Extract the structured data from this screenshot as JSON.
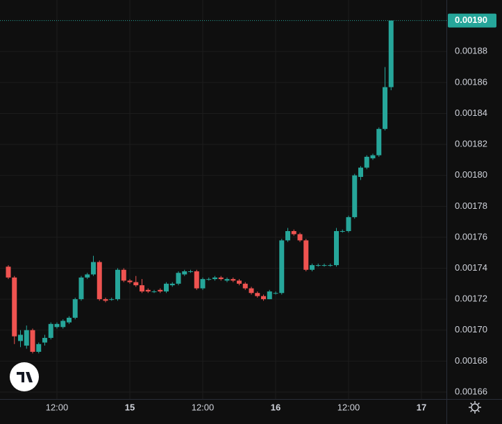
{
  "chart_data": {
    "type": "candlestick",
    "categories": [
      null,
      null,
      null,
      null,
      null,
      null,
      null,
      null,
      "12:00",
      null,
      null,
      null,
      null,
      null,
      null,
      null,
      null,
      null,
      null,
      null,
      "15",
      null,
      null,
      null,
      null,
      null,
      null,
      null,
      null,
      null,
      null,
      null,
      "12:00",
      null,
      null,
      null,
      null,
      null,
      null,
      null,
      null,
      null,
      null,
      null,
      "16",
      null,
      null,
      null,
      null,
      null,
      null,
      null,
      null,
      null,
      null,
      null,
      "12:00",
      null,
      null,
      null,
      null,
      null,
      null,
      null,
      null,
      null,
      null,
      null,
      "17"
    ],
    "open": [
      0.001741,
      0.001734,
      0.001693,
      0.00169,
      0.0017,
      0.001686,
      0.001692,
      0.001695,
      0.001702,
      0.001702,
      0.001705,
      0.001708,
      0.00172,
      0.001734,
      0.001736,
      0.001744,
      0.00172,
      0.00172,
      0.00172,
      0.001739,
      0.001732,
      0.001731,
      0.001729,
      0.001726,
      0.001725,
      0.001726,
      0.001725,
      0.001729,
      0.00173,
      0.001736,
      0.001738,
      0.001738,
      0.001727,
      0.001733,
      0.001733,
      0.001734,
      0.001732,
      0.001733,
      0.001732,
      0.00173,
      0.001727,
      0.001724,
      0.001722,
      0.00172,
      0.001724,
      0.001724,
      0.001758,
      0.001764,
      0.001762,
      0.001758,
      0.001739,
      0.001742,
      0.001742,
      0.001742,
      0.001742,
      0.001764,
      0.001764,
      0.001773,
      0.001799,
      0.001805,
      0.001811,
      0.001813,
      0.00183,
      0.001857,
      null,
      null,
      null,
      null,
      null
    ],
    "high": [
      0.001742,
      0.001735,
      0.0017,
      0.001703,
      0.001701,
      0.001692,
      0.001697,
      0.001705,
      0.001705,
      0.001707,
      0.001709,
      0.001721,
      0.001735,
      0.001737,
      0.001748,
      0.001745,
      0.001721,
      0.001721,
      0.00174,
      0.00174,
      0.001733,
      0.001735,
      0.001733,
      0.001727,
      0.001726,
      0.001727,
      0.001731,
      0.001731,
      0.001738,
      0.001739,
      0.001739,
      0.001739,
      0.001734,
      0.001734,
      0.001735,
      0.001735,
      0.001734,
      0.001734,
      0.001733,
      0.001731,
      0.001728,
      0.001725,
      0.001723,
      0.001726,
      0.001725,
      0.001759,
      0.001766,
      0.001765,
      0.001763,
      0.001759,
      0.001743,
      0.001743,
      0.001743,
      0.001743,
      0.001766,
      0.001765,
      0.001774,
      0.001801,
      0.001806,
      0.001813,
      0.001814,
      0.001831,
      0.00187,
      0.0019,
      null,
      null,
      null,
      null,
      null
    ],
    "low": [
      0.001733,
      0.001691,
      0.001689,
      0.001688,
      0.001685,
      0.001685,
      0.00169,
      0.001694,
      0.001701,
      0.001701,
      0.001704,
      0.001707,
      0.001719,
      0.001733,
      0.001735,
      0.001719,
      0.001718,
      0.001719,
      0.001719,
      0.001731,
      0.00173,
      0.001728,
      0.001724,
      0.001724,
      0.001724,
      0.001724,
      0.001724,
      0.001728,
      0.001729,
      0.001735,
      0.001737,
      0.001726,
      0.001726,
      0.001732,
      0.001732,
      0.001732,
      0.001731,
      0.001731,
      0.001729,
      0.001726,
      0.001723,
      0.001721,
      0.001719,
      0.00172,
      0.001723,
      0.001723,
      0.001757,
      0.001761,
      0.001757,
      0.001738,
      0.001738,
      0.001741,
      0.001741,
      0.001741,
      0.001741,
      0.001763,
      0.001763,
      0.001772,
      0.001797,
      0.001804,
      0.00181,
      0.001812,
      0.001829,
      0.001855,
      null,
      null,
      null,
      null,
      null
    ],
    "close": [
      0.001734,
      0.001696,
      0.001697,
      0.0017,
      0.001686,
      0.001691,
      0.001695,
      0.001704,
      0.001704,
      0.001706,
      0.001708,
      0.00172,
      0.001734,
      0.001736,
      0.001744,
      0.00172,
      0.001719,
      0.00172,
      0.001739,
      0.001732,
      0.001731,
      0.001729,
      0.001725,
      0.001725,
      0.001725,
      0.001725,
      0.00173,
      0.00173,
      0.001737,
      0.001738,
      0.001738,
      0.001727,
      0.001733,
      0.001733,
      0.001734,
      0.001733,
      0.001733,
      0.001732,
      0.00173,
      0.001727,
      0.001724,
      0.001722,
      0.00172,
      0.001725,
      0.001724,
      0.001758,
      0.001764,
      0.001762,
      0.001758,
      0.001739,
      0.001742,
      0.001742,
      0.001742,
      0.001742,
      0.001764,
      0.001764,
      0.001773,
      0.0018,
      0.001805,
      0.001812,
      0.001813,
      0.00183,
      0.001857,
      0.0019,
      null,
      null,
      null,
      null,
      null
    ],
    "up_color": "#26a69a",
    "down_color": "#ef5350",
    "ylim": [
      0.0016555,
      0.0019133
    ],
    "yticks": [
      0.00166,
      0.00168,
      {
        "value": 0.0017,
        "label": "0.00170"
      },
      0.00172,
      0.00174,
      0.00176,
      0.00178,
      {
        "value": 0.0018,
        "label": "0.00180"
      },
      0.00182,
      0.00184,
      0.00186,
      0.00188
    ],
    "price_label": {
      "value": 0.0019,
      "label": "0.00190"
    },
    "grid": true
  }
}
